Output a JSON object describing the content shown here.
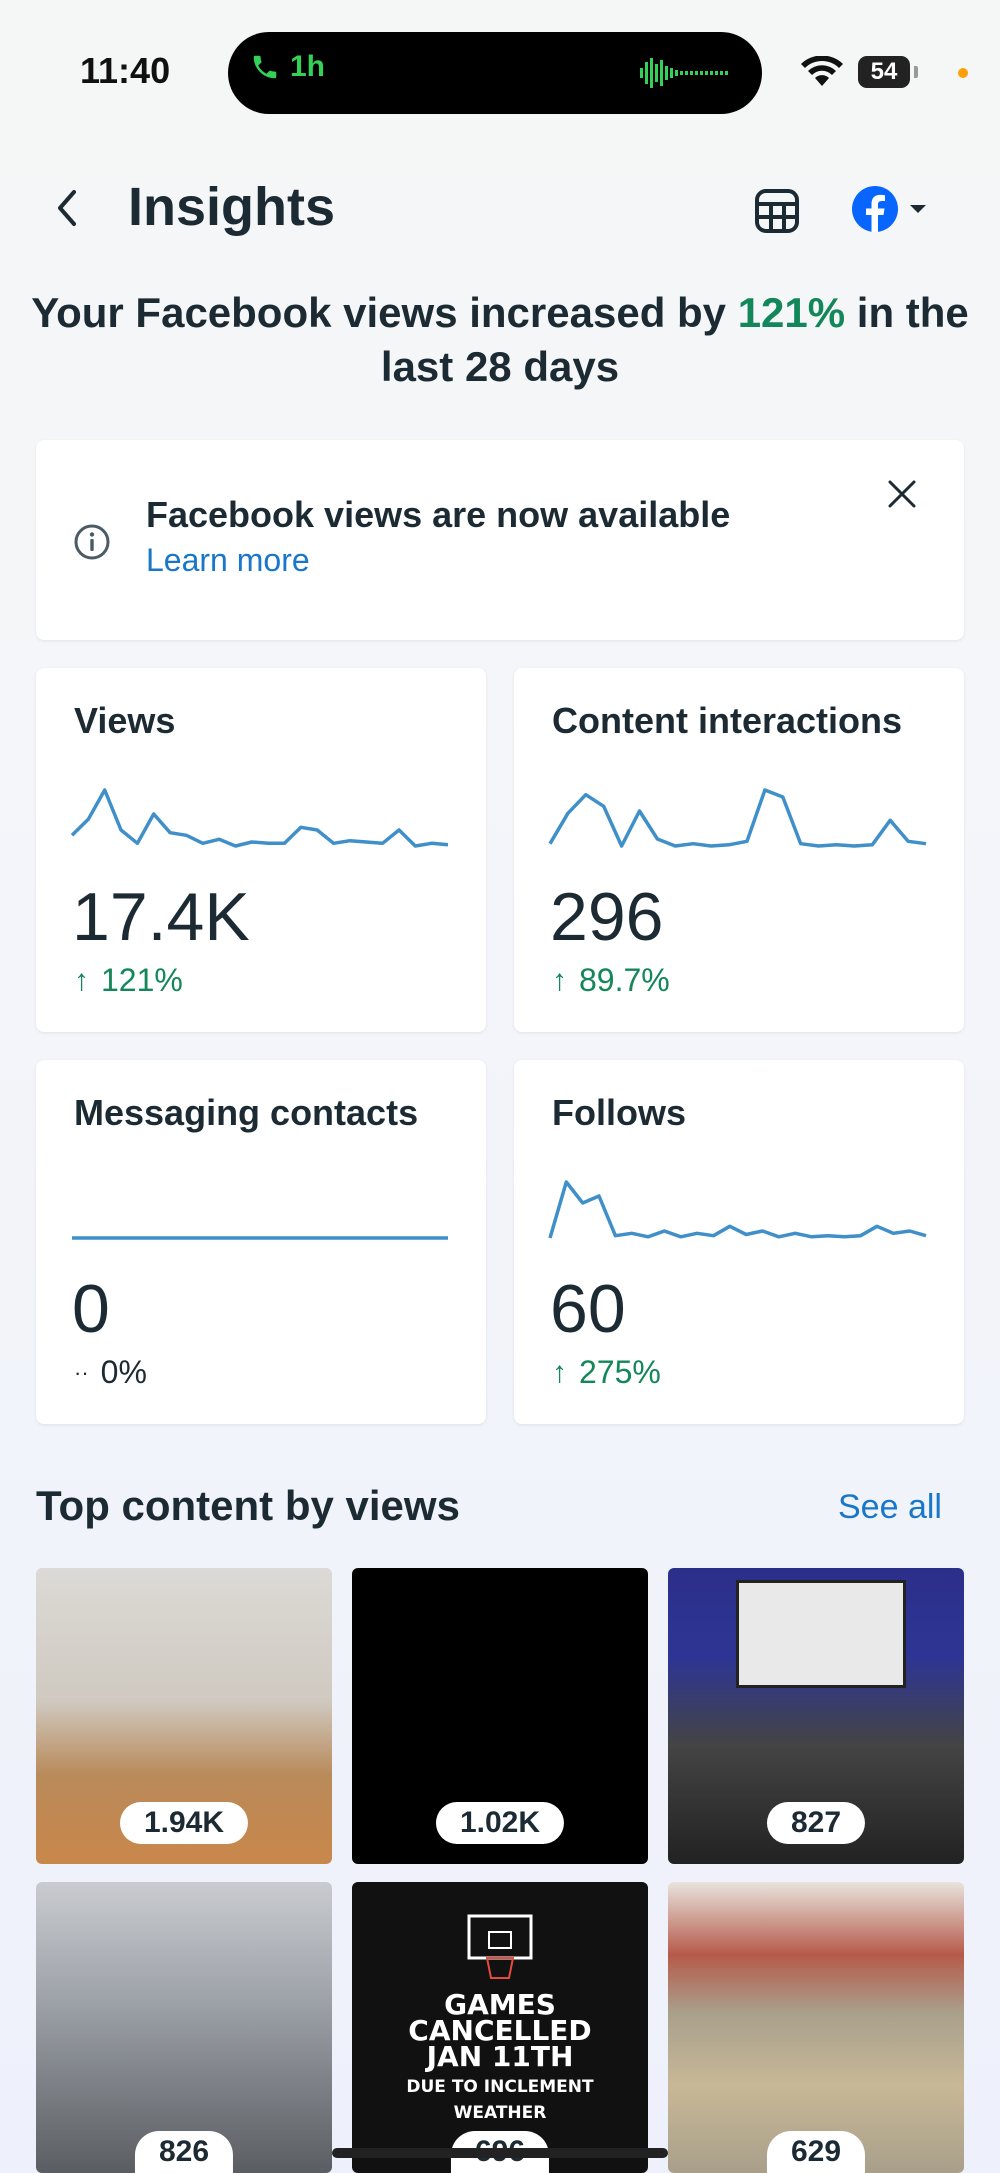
{
  "status_bar": {
    "time": "11:40",
    "call_duration": "1h",
    "battery": "54"
  },
  "header": {
    "title": "Insights",
    "back_icon": "chevron-left-icon",
    "table_icon": "table-icon",
    "account_icon": "facebook-icon"
  },
  "headline": {
    "prefix": "Your Facebook views increased by",
    "highlight": "121%",
    "suffix": "in the last 28 days"
  },
  "notice": {
    "title": "Facebook views are now available",
    "link": "Learn more"
  },
  "metrics": [
    {
      "label": "Views",
      "value": "17.4K",
      "change": "121%",
      "trend": "up",
      "spark": [
        8,
        20,
        42,
        12,
        2,
        24,
        10,
        8,
        2,
        5,
        0,
        3,
        2,
        2,
        14,
        12,
        2,
        4,
        3,
        2,
        12,
        0,
        2,
        1
      ]
    },
    {
      "label": "Content interactions",
      "value": "296",
      "change": "89.7%",
      "trend": "up",
      "spark": [
        2,
        28,
        44,
        34,
        0,
        30,
        6,
        0,
        2,
        0,
        1,
        4,
        48,
        42,
        2,
        0,
        1,
        0,
        1,
        22,
        4,
        2
      ]
    },
    {
      "label": "Messaging contacts",
      "value": "0",
      "change": "0%",
      "trend": "flat",
      "spark": [
        0,
        0,
        0,
        0,
        0,
        0,
        0,
        0,
        0,
        0,
        0,
        0
      ]
    },
    {
      "label": "Follows",
      "value": "60",
      "change": "275%",
      "trend": "up",
      "spark": [
        0,
        48,
        30,
        36,
        2,
        4,
        1,
        6,
        1,
        4,
        2,
        10,
        3,
        6,
        1,
        4,
        1,
        2,
        1,
        2,
        10,
        4,
        6,
        2
      ]
    }
  ],
  "top_content": {
    "title": "Top content by views",
    "see_all": "See all",
    "items": [
      {
        "count": "1.94K"
      },
      {
        "count": "1.02K"
      },
      {
        "count": "827"
      },
      {
        "count": "826"
      },
      {
        "count": "696",
        "text_lines": [
          "GAMES",
          "CANCELLED",
          "JAN 11TH"
        ],
        "sub_lines": [
          "DUE TO INCLEMENT",
          "WEATHER"
        ]
      },
      {
        "count": "629"
      }
    ]
  },
  "colors": {
    "accent_blue": "#1877c9",
    "positive_green": "#14875a",
    "sparkline": "#3f8fc9",
    "facebook_blue": "#0866ff"
  }
}
